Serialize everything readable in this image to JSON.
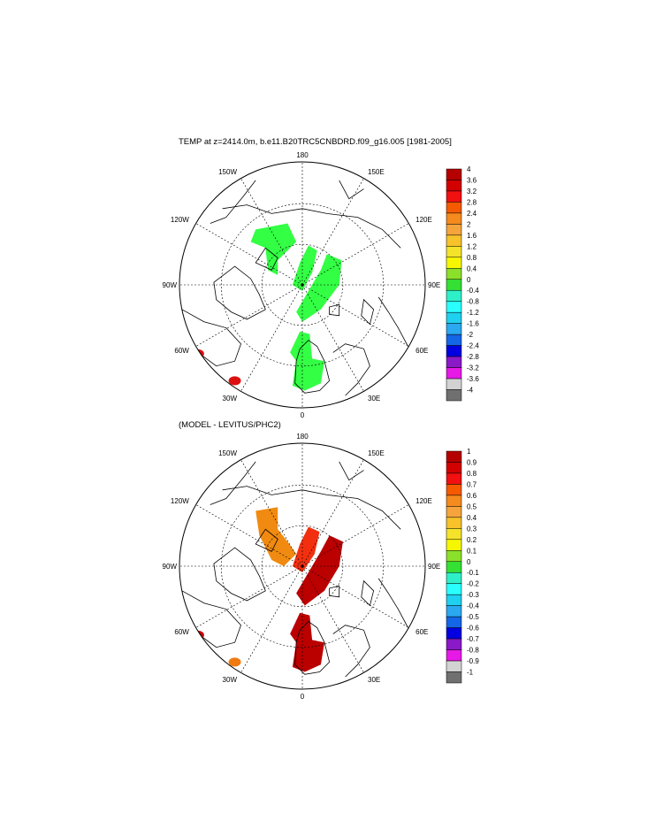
{
  "panels": [
    {
      "title": "TEMP at z=2414.0m, b.e11.B20TRC5CNBDRD.f09_g16.005 [1981-2005]",
      "lon_labels": [
        "180",
        "150E",
        "120E",
        "90E",
        "60E",
        "30E",
        "0",
        "30W",
        "60W",
        "90W",
        "120W",
        "150W"
      ],
      "colorbar": {
        "labels": [
          "4",
          "3.6",
          "3.2",
          "2.8",
          "2.4",
          "2",
          "1.6",
          "1.2",
          "0.8",
          "0.4",
          "0",
          "-0.4",
          "-0.8",
          "-1.2",
          "-1.6",
          "-2",
          "-2.4",
          "-2.8",
          "-3.2",
          "-3.6",
          "-4"
        ]
      },
      "field_color": "#33ff44"
    },
    {
      "title": "(MODEL - LEVITUS/PHC2)",
      "lon_labels": [
        "180",
        "150E",
        "120E",
        "90E",
        "60E",
        "30E",
        "0",
        "30W",
        "60W",
        "90W",
        "120W",
        "150W"
      ],
      "colorbar": {
        "labels": [
          "1",
          "0.9",
          "0.8",
          "0.7",
          "0.6",
          "0.5",
          "0.4",
          "0.3",
          "0.2",
          "0.1",
          "0",
          "-0.1",
          "-0.2",
          "-0.3",
          "-0.4",
          "-0.5",
          "-0.6",
          "-0.7",
          "-0.8",
          "-0.9",
          "-1"
        ]
      },
      "field_color": "#bb0000"
    }
  ],
  "colorbar_colors": [
    "#b50000",
    "#d30000",
    "#f21010",
    "#f65a00",
    "#f58a1e",
    "#f5a43c",
    "#f7c22a",
    "#f4e32a",
    "#f6f600",
    "#8be02a",
    "#33e033",
    "#2ef0c8",
    "#29ffff",
    "#20d0f0",
    "#2aa8f0",
    "#1466e6",
    "#0000e0",
    "#8a19c8",
    "#e619e6",
    "#d2d2d2",
    "#707070"
  ]
}
